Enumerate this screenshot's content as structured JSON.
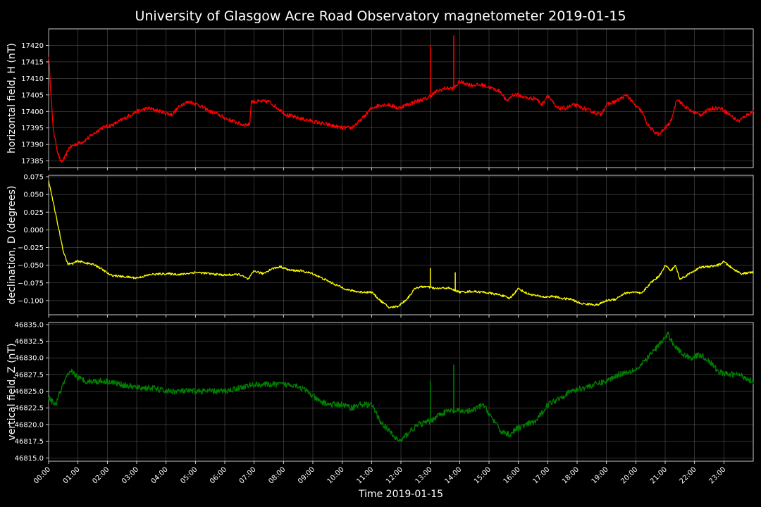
{
  "figure": {
    "title": "University of Glasgow Acre Road Observatory magnetometer 2019-01-15",
    "xlabel": "Time 2019-01-15",
    "background": "#000000"
  },
  "chart_data": [
    {
      "type": "line",
      "ylabel": "horizontal field, H (nT)",
      "color": "#ff0000",
      "ylim": [
        17383,
        17425
      ],
      "yticks": [
        17385,
        17390,
        17395,
        17400,
        17405,
        17410,
        17415,
        17420
      ],
      "ytick_labels": [
        "17385",
        "17390",
        "17395",
        "17400",
        "17405",
        "17410",
        "17415",
        "17420"
      ],
      "xlim_hours": [
        0,
        24
      ],
      "xticks_hours": [
        0,
        1,
        2,
        3,
        4,
        5,
        6,
        7,
        8,
        9,
        10,
        11,
        12,
        13,
        14,
        15,
        16,
        17,
        18,
        19,
        20,
        21,
        22,
        23
      ],
      "grid": true,
      "noise": 0.6,
      "x": [
        0,
        0.05,
        0.15,
        0.3,
        0.42,
        0.55,
        0.7,
        0.9,
        1.2,
        1.5,
        1.8,
        2.2,
        2.6,
        3.0,
        3.4,
        3.8,
        4.2,
        4.5,
        4.8,
        5.1,
        5.5,
        5.8,
        6.0,
        6.3,
        6.6,
        6.85,
        6.9,
        7.1,
        7.5,
        7.8,
        8.1,
        8.5,
        9.0,
        9.5,
        10.0,
        10.3,
        10.6,
        11.0,
        11.3,
        11.6,
        11.9,
        12.2,
        12.5,
        12.9,
        13.2,
        13.5,
        13.8,
        14.0,
        14.4,
        14.8,
        15.1,
        15.4,
        15.6,
        15.8,
        16.0,
        16.3,
        16.6,
        16.8,
        17.0,
        17.3,
        17.6,
        17.9,
        18.2,
        18.5,
        18.8,
        19.0,
        19.3,
        19.7,
        19.95,
        20.2,
        20.4,
        20.6,
        20.8,
        21.0,
        21.2,
        21.4,
        21.6,
        21.9,
        22.2,
        22.6,
        22.9,
        23.2,
        23.5,
        23.8,
        24.0
      ],
      "y": [
        17417,
        17410,
        17395,
        17388,
        17384.5,
        17386,
        17389,
        17390,
        17391,
        17393,
        17395,
        17396,
        17398,
        17400,
        17401,
        17400,
        17399,
        17402,
        17403,
        17402,
        17400,
        17399,
        17398,
        17397,
        17396,
        17396,
        17403,
        17403,
        17403,
        17401,
        17399,
        17398,
        17397,
        17396,
        17395,
        17395,
        17397,
        17401,
        17402,
        17402,
        17401,
        17402,
        17403,
        17404,
        17406,
        17407,
        17407,
        17409,
        17408,
        17408,
        17407,
        17406,
        17403,
        17405,
        17405,
        17404,
        17404,
        17402,
        17405,
        17401,
        17401,
        17402,
        17401,
        17400,
        17399,
        17402,
        17403,
        17405,
        17402,
        17400,
        17396,
        17394,
        17393,
        17395,
        17397,
        17404,
        17402,
        17400,
        17399,
        17401,
        17401,
        17399,
        17397,
        17399,
        17400
      ],
      "spikes": [
        {
          "x": 13.0,
          "y": 17420
        },
        {
          "x": 13.8,
          "y": 17423
        }
      ]
    },
    {
      "type": "line",
      "ylabel": "declination, D (degrees)",
      "color": "#ffff00",
      "ylim": [
        -0.12,
        0.077
      ],
      "yticks": [
        -0.1,
        -0.075,
        -0.05,
        -0.025,
        0.0,
        0.025,
        0.05,
        0.075
      ],
      "ytick_labels": [
        "−0.100",
        "−0.075",
        "−0.050",
        "−0.025",
        "0.000",
        "0.025",
        "0.050",
        "0.075"
      ],
      "xlim_hours": [
        0,
        24
      ],
      "xticks_hours": [
        0,
        1,
        2,
        3,
        4,
        5,
        6,
        7,
        8,
        9,
        10,
        11,
        12,
        13,
        14,
        15,
        16,
        17,
        18,
        19,
        20,
        21,
        22,
        23
      ],
      "grid": true,
      "noise": 0.0015,
      "x": [
        0,
        0.05,
        0.2,
        0.35,
        0.5,
        0.65,
        0.8,
        1.0,
        1.3,
        1.6,
        1.9,
        2.1,
        2.5,
        3.0,
        3.5,
        4.0,
        4.5,
        5.0,
        5.5,
        6.0,
        6.5,
        6.8,
        7.0,
        7.3,
        7.6,
        7.9,
        8.2,
        8.6,
        9.0,
        9.4,
        9.8,
        10.2,
        10.6,
        11.0,
        11.3,
        11.6,
        11.9,
        12.2,
        12.5,
        12.8,
        13.2,
        13.6,
        14.0,
        14.4,
        14.8,
        15.1,
        15.4,
        15.7,
        16.0,
        16.3,
        16.6,
        16.9,
        17.2,
        17.5,
        17.8,
        18.1,
        18.4,
        18.7,
        19.0,
        19.3,
        19.6,
        19.9,
        20.2,
        20.5,
        20.8,
        21.0,
        21.2,
        21.35,
        21.5,
        21.7,
        21.9,
        22.2,
        22.5,
        22.8,
        23.0,
        23.3,
        23.6,
        24.0
      ],
      "y": [
        0.07,
        0.06,
        0.03,
        0.0,
        -0.03,
        -0.048,
        -0.048,
        -0.044,
        -0.047,
        -0.05,
        -0.058,
        -0.064,
        -0.066,
        -0.068,
        -0.063,
        -0.062,
        -0.063,
        -0.06,
        -0.062,
        -0.064,
        -0.063,
        -0.07,
        -0.058,
        -0.062,
        -0.055,
        -0.052,
        -0.057,
        -0.058,
        -0.062,
        -0.07,
        -0.078,
        -0.085,
        -0.088,
        -0.088,
        -0.1,
        -0.11,
        -0.108,
        -0.098,
        -0.082,
        -0.08,
        -0.083,
        -0.082,
        -0.088,
        -0.087,
        -0.088,
        -0.09,
        -0.092,
        -0.097,
        -0.083,
        -0.09,
        -0.093,
        -0.095,
        -0.094,
        -0.097,
        -0.098,
        -0.104,
        -0.105,
        -0.106,
        -0.1,
        -0.098,
        -0.09,
        -0.088,
        -0.09,
        -0.075,
        -0.065,
        -0.05,
        -0.058,
        -0.05,
        -0.07,
        -0.065,
        -0.06,
        -0.053,
        -0.052,
        -0.05,
        -0.045,
        -0.055,
        -0.062,
        -0.06
      ],
      "spikes": [
        {
          "x": 13.0,
          "y": -0.054
        },
        {
          "x": 13.85,
          "y": -0.06
        }
      ]
    },
    {
      "type": "line",
      "ylabel": "vertical field, Z (nT)",
      "color": "#008000",
      "ylim": [
        46814.5,
        46835.3
      ],
      "yticks": [
        46815.0,
        46817.5,
        46820.0,
        46822.5,
        46825.0,
        46827.5,
        46830.0,
        46832.5,
        46835.0
      ],
      "ytick_labels": [
        "46815.0",
        "46817.5",
        "46820.0",
        "46822.5",
        "46825.0",
        "46827.5",
        "46830.0",
        "46832.5",
        "46835.0"
      ],
      "xlim_hours": [
        0,
        24
      ],
      "xticks_hours": [
        0,
        1,
        2,
        3,
        4,
        5,
        6,
        7,
        8,
        9,
        10,
        11,
        12,
        13,
        14,
        15,
        16,
        17,
        18,
        19,
        20,
        21,
        22,
        23
      ],
      "grid": true,
      "noise": 0.45,
      "x": [
        0,
        0.1,
        0.25,
        0.4,
        0.6,
        0.8,
        1.0,
        1.3,
        1.7,
        2.0,
        2.5,
        3.0,
        3.5,
        4.0,
        4.5,
        5.0,
        5.5,
        6.0,
        6.5,
        7.0,
        7.5,
        8.0,
        8.4,
        8.8,
        9.2,
        9.6,
        10.0,
        10.3,
        10.6,
        11.0,
        11.3,
        11.6,
        11.8,
        12.0,
        12.3,
        12.6,
        13.0,
        13.3,
        13.6,
        14.0,
        14.4,
        14.8,
        15.1,
        15.4,
        15.7,
        16.0,
        16.3,
        16.6,
        17.0,
        17.4,
        17.8,
        18.2,
        18.6,
        19.0,
        19.4,
        19.8,
        20.1,
        20.4,
        20.7,
        20.9,
        21.1,
        21.3,
        21.6,
        21.9,
        22.2,
        22.5,
        22.8,
        23.1,
        23.5,
        24.0
      ],
      "y": [
        46824,
        46823.5,
        46823,
        46825,
        46827,
        46828,
        46827,
        46826.5,
        46826.5,
        46826.5,
        46826,
        46825.5,
        46825.5,
        46825,
        46825,
        46825,
        46825,
        46825,
        46825.5,
        46826,
        46826,
        46826,
        46826,
        46825,
        46823.5,
        46823,
        46823,
        46822.5,
        46823,
        46823,
        46820.5,
        46819,
        46818,
        46817.5,
        46819,
        46820,
        46820.5,
        46821.5,
        46822,
        46822,
        46822,
        46823,
        46821,
        46819,
        46818.5,
        46819.5,
        46820,
        46820.5,
        46823,
        46824,
        46825,
        46825.5,
        46826,
        46826.5,
        46827.5,
        46828,
        46828.5,
        46830,
        46831.5,
        46832.5,
        46833.5,
        46832,
        46830.5,
        46830,
        46830.5,
        46829.5,
        46828,
        46827.5,
        46827.5,
        46826.5
      ],
      "spikes": [
        {
          "x": 13.0,
          "y": 46826.5
        },
        {
          "x": 13.8,
          "y": 46829
        }
      ]
    }
  ],
  "xtick_labels": [
    "00:00",
    "01:00",
    "02:00",
    "03:00",
    "04:00",
    "05:00",
    "06:00",
    "07:00",
    "08:00",
    "09:00",
    "10:00",
    "11:00",
    "12:00",
    "13:00",
    "14:00",
    "15:00",
    "16:00",
    "17:00",
    "18:00",
    "19:00",
    "20:00",
    "21:00",
    "22:00",
    "23:00"
  ]
}
